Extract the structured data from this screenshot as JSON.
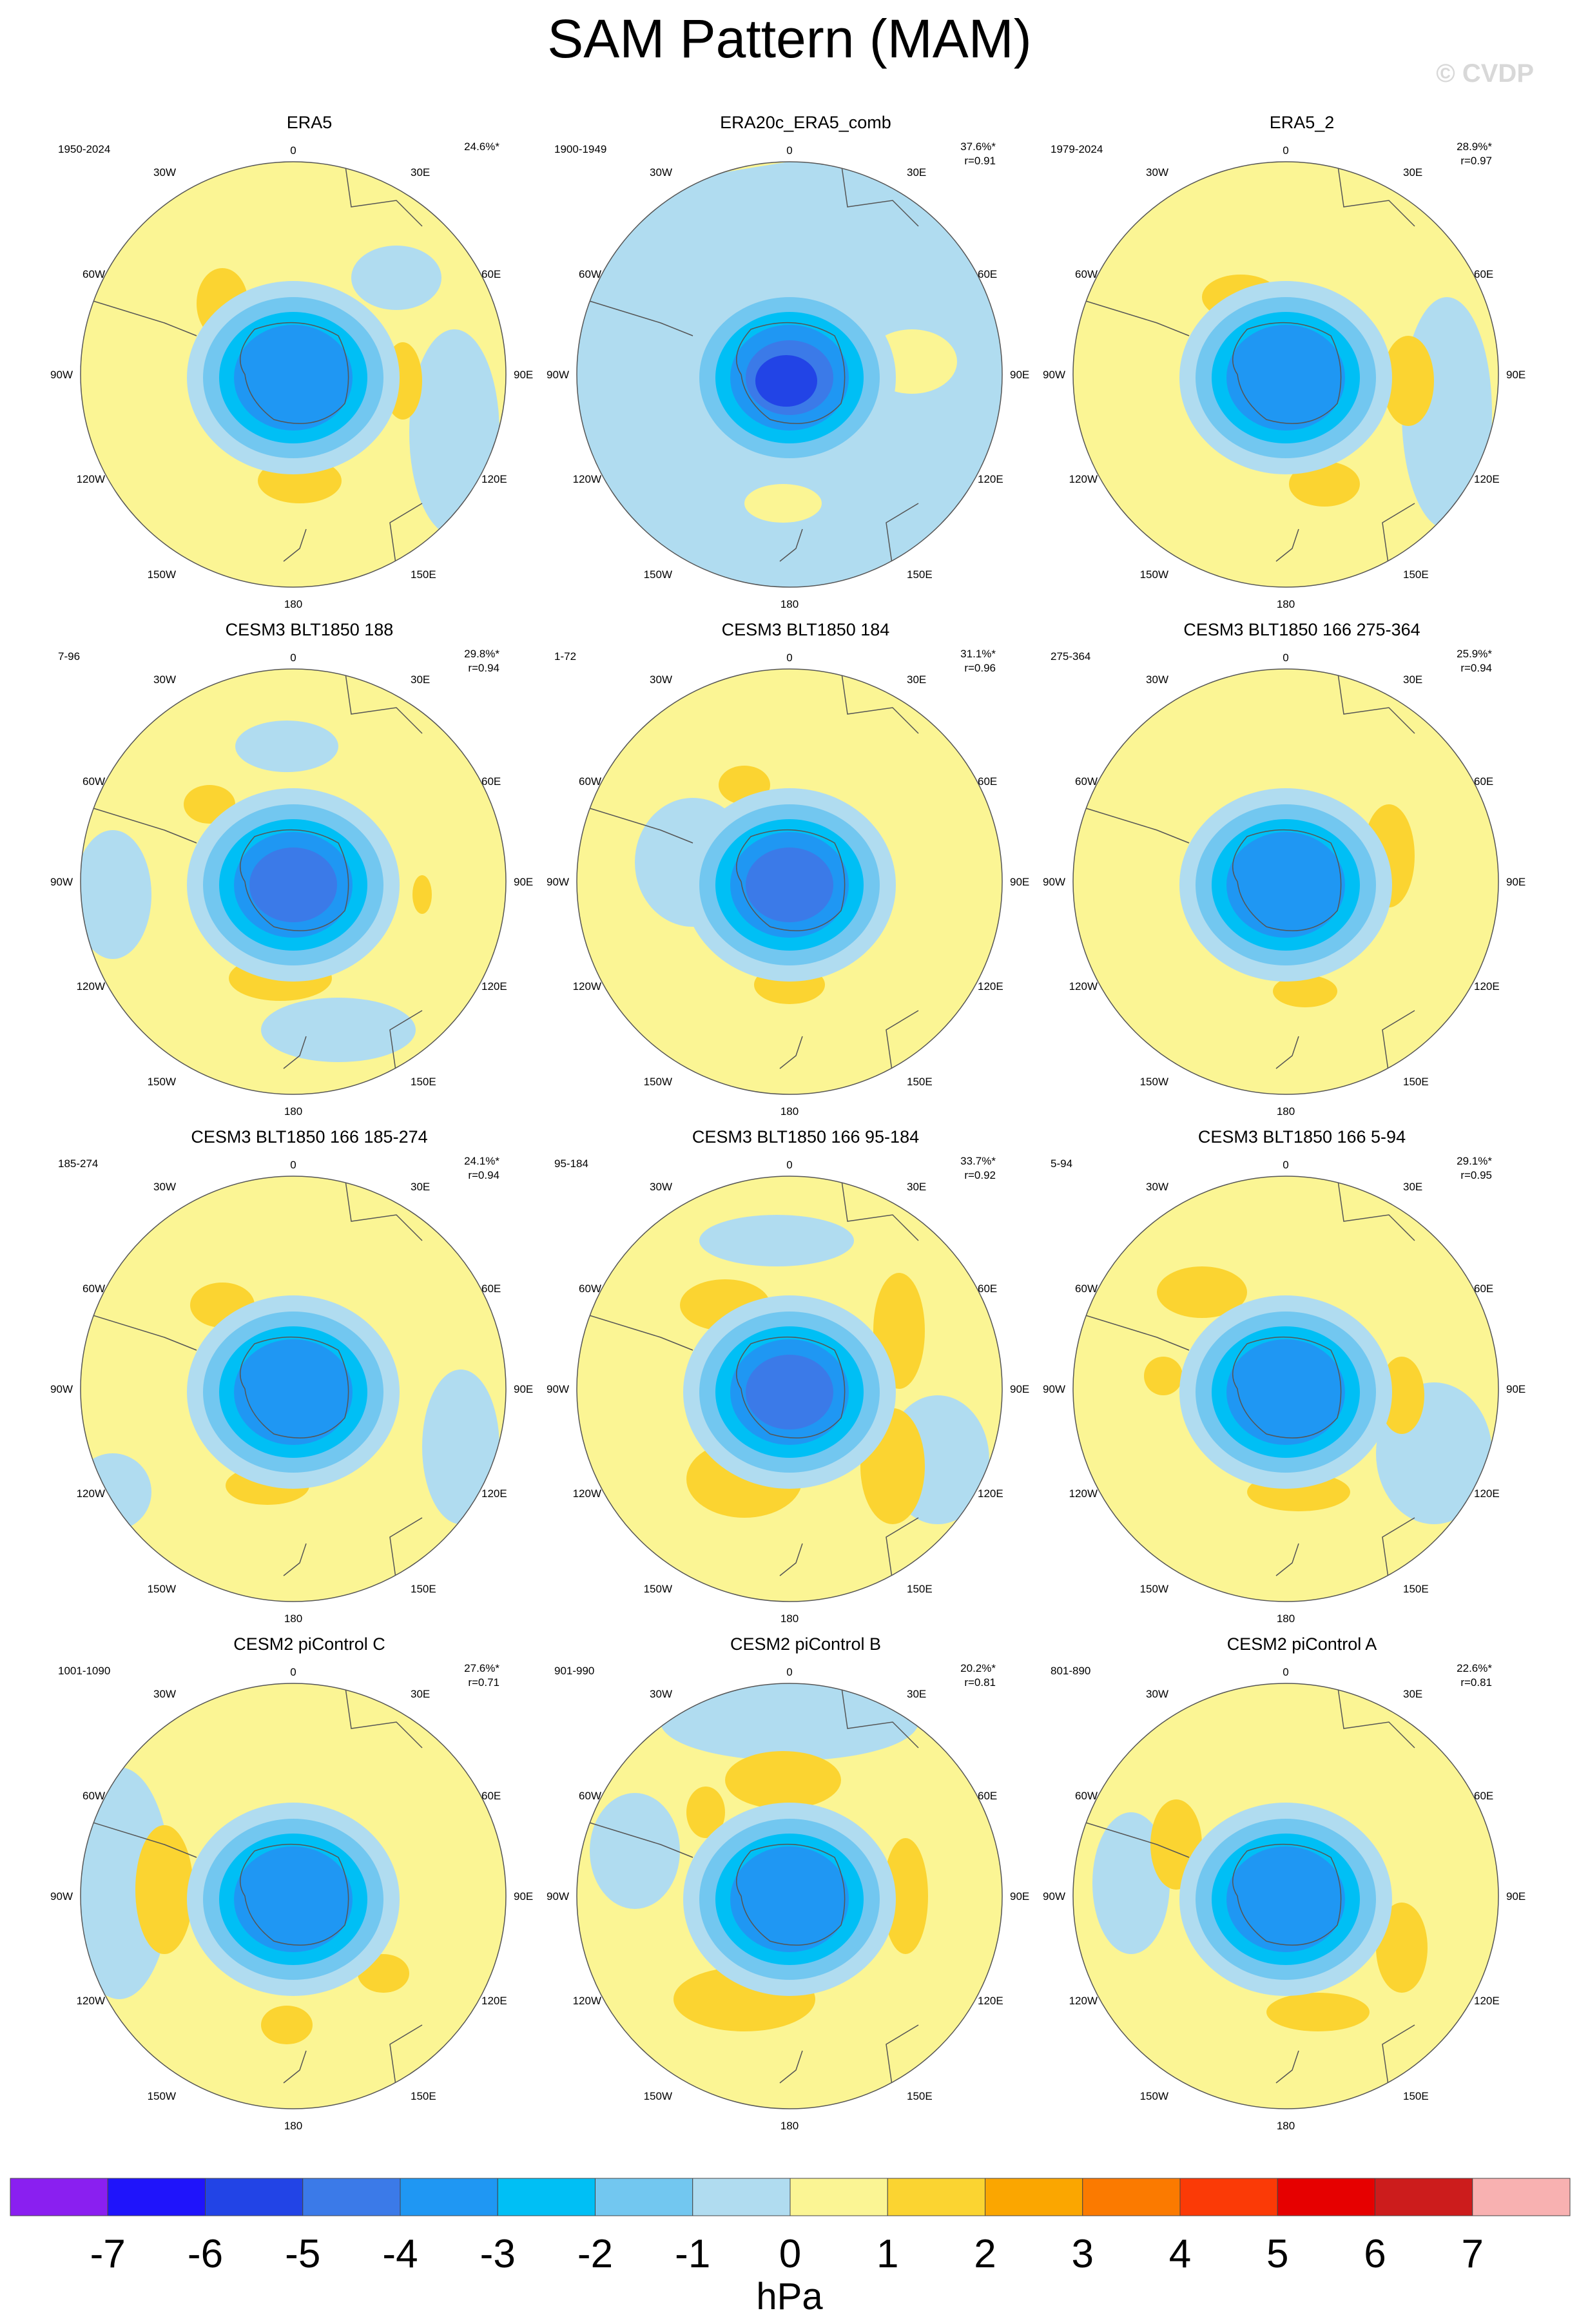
{
  "title": "SAM Pattern (MAM)",
  "watermark": "© CVDP",
  "lon_labels": {
    "top": "0",
    "bottom": "180",
    "30E": "30E",
    "60E": "60E",
    "90E": "90E",
    "120E": "120E",
    "150E": "150E",
    "30W": "30W",
    "60W": "60W",
    "90W": "90W",
    "120W": "120W",
    "150W": "150W"
  },
  "panels": [
    {
      "name": "ERA5",
      "years": "1950-2024",
      "pct": "24.6%*",
      "r": ""
    },
    {
      "name": "ERA20c_ERA5_comb",
      "years": "1900-1949",
      "pct": "37.6%*",
      "r": "r=0.91"
    },
    {
      "name": "ERA5_2",
      "years": "1979-2024",
      "pct": "28.9%*",
      "r": "r=0.97"
    },
    {
      "name": "CESM3 BLT1850 188",
      "years": "7-96",
      "pct": "29.8%*",
      "r": "r=0.94"
    },
    {
      "name": "CESM3 BLT1850 184",
      "years": "1-72",
      "pct": "31.1%*",
      "r": "r=0.96"
    },
    {
      "name": "CESM3 BLT1850 166 275-364",
      "years": "275-364",
      "pct": "25.9%*",
      "r": "r=0.94"
    },
    {
      "name": "CESM3 BLT1850 166 185-274",
      "years": "185-274",
      "pct": "24.1%*",
      "r": "r=0.94"
    },
    {
      "name": "CESM3 BLT1850 166 95-184",
      "years": "95-184",
      "pct": "33.7%*",
      "r": "r=0.92"
    },
    {
      "name": "CESM3 BLT1850 166 5-94",
      "years": "5-94",
      "pct": "29.1%*",
      "r": "r=0.95"
    },
    {
      "name": "CESM2 piControl C",
      "years": "1001-1090",
      "pct": "27.6%*",
      "r": "r=0.71"
    },
    {
      "name": "CESM2 piControl B",
      "years": "901-990",
      "pct": "20.2%*",
      "r": "r=0.81"
    },
    {
      "name": "CESM2 piControl A",
      "years": "801-890",
      "pct": "22.6%*",
      "r": "r=0.81"
    }
  ],
  "colorbar": {
    "units": "hPa",
    "labels": [
      "-7",
      "-6",
      "-5",
      "-4",
      "-3",
      "-2",
      "-1",
      "0",
      "1",
      "2",
      "3",
      "4",
      "5",
      "6",
      "7"
    ],
    "colors": [
      "#8a1ff0",
      "#1f14fb",
      "#2244e6",
      "#3b7ae8",
      "#1f97f3",
      "#00bff5",
      "#72c7f0",
      "#b0dcf0",
      "#fbf594",
      "#fbd431",
      "#fba600",
      "#fb7a00",
      "#fb3a06",
      "#e60000",
      "#cc1c1c",
      "#f8b1b1"
    ]
  }
}
